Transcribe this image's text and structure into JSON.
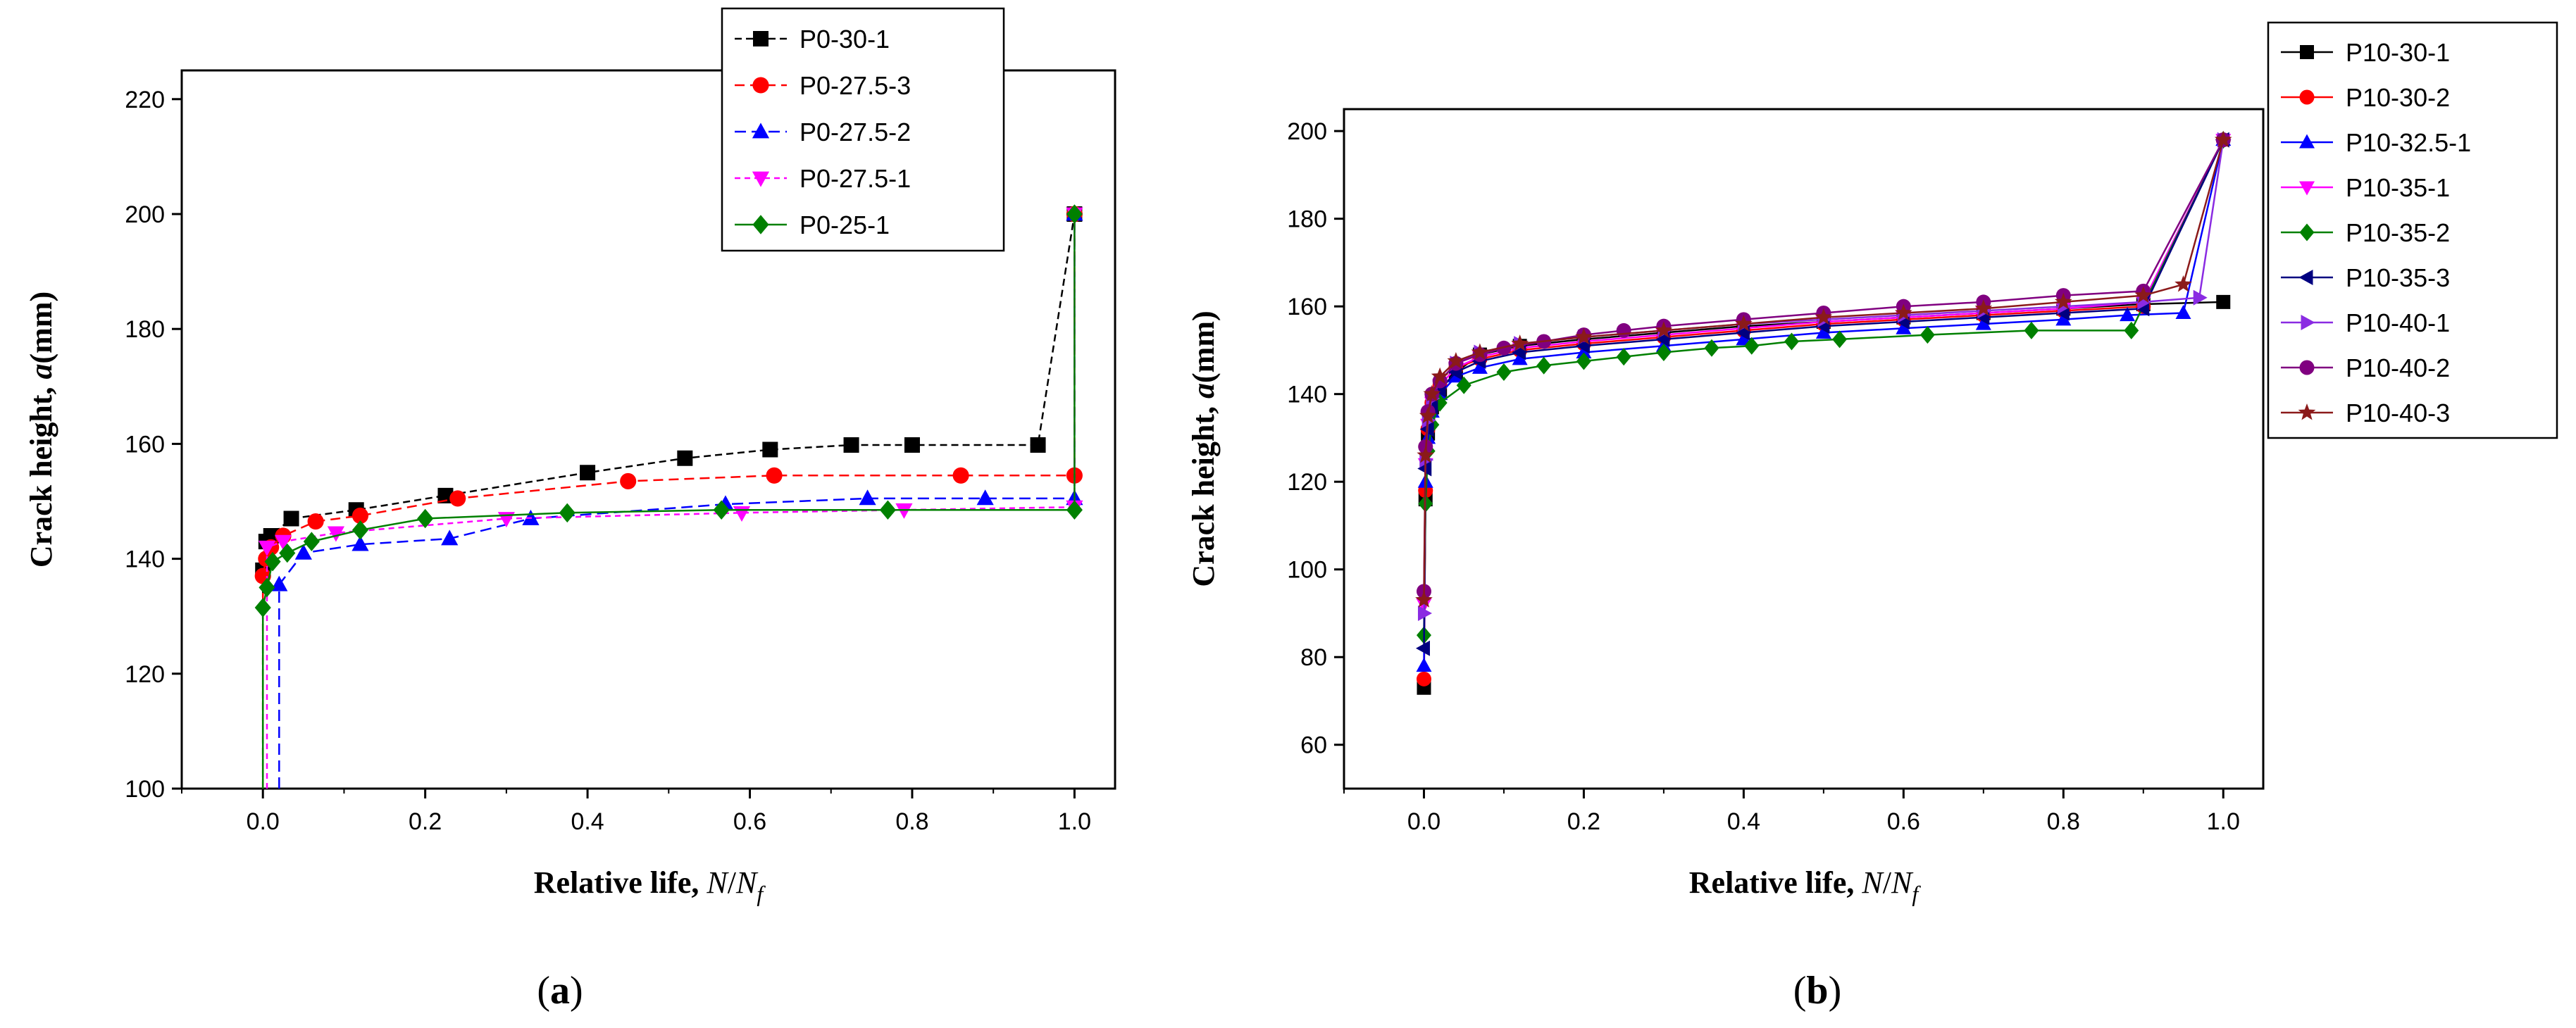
{
  "chart_data": [
    {
      "panel": "a",
      "caption_open": "(",
      "caption_letter": "a",
      "caption_close": ")",
      "type": "line",
      "xlabel": "Relative life, N/N_f",
      "xlabel_main": "Relative life, ",
      "xlabel_N": "N",
      "xlabel_slash": "/",
      "xlabel_N2": "N",
      "xlabel_sub": "f",
      "ylabel_main": "Crack height, ",
      "ylabel_var": "a",
      "ylabel_unit": "(mm)",
      "xlim": [
        -0.1,
        1.05
      ],
      "ylim": [
        100,
        225
      ],
      "xticks": [
        0.0,
        0.2,
        0.4,
        0.6,
        0.8,
        1.0
      ],
      "xtick_labels": [
        "0.0",
        "0.2",
        "0.4",
        "0.6",
        "0.8",
        "1.0"
      ],
      "yticks": [
        100,
        120,
        140,
        160,
        180,
        200,
        220
      ],
      "ytick_labels": [
        "100",
        "120",
        "140",
        "160",
        "180",
        "200",
        "220"
      ],
      "legend_position": "top-right",
      "series": [
        {
          "name": "P0-30-1",
          "color": "#000000",
          "marker": "square",
          "dash": "10,6",
          "x": [
            0,
            0,
            0.004,
            0.01,
            0.035,
            0.115,
            0.225,
            0.4,
            0.52,
            0.625,
            0.725,
            0.8,
            0.955,
            1.0
          ],
          "y": [
            100,
            138,
            143,
            144,
            147,
            148.5,
            151,
            155,
            157.5,
            159,
            159.8,
            159.8,
            159.8,
            200
          ]
        },
        {
          "name": "P0-27.5-3",
          "color": "#ff0000",
          "marker": "circle",
          "dash": "14,8",
          "x": [
            0,
            0,
            0.004,
            0.01,
            0.025,
            0.065,
            0.12,
            0.24,
            0.45,
            0.63,
            0.86,
            1.0,
            1.0
          ],
          "y": [
            100,
            137,
            140,
            142,
            144,
            146.5,
            147.5,
            150.5,
            153.5,
            154.5,
            154.5,
            154.5,
            200
          ]
        },
        {
          "name": "P0-27.5-2",
          "color": "#0000ff",
          "marker": "triangle-up",
          "dash": "16,8",
          "x": [
            0.02,
            0.02,
            0.05,
            0.12,
            0.23,
            0.33,
            0.57,
            0.745,
            0.89,
            1.0,
            1.0
          ],
          "y": [
            100,
            135.5,
            141,
            142.5,
            143.5,
            147,
            149.5,
            150.5,
            150.5,
            150.5,
            200
          ]
        },
        {
          "name": "P0-27.5-1",
          "color": "#ff00ff",
          "marker": "triangle-down",
          "dash": "8,6",
          "x": [
            0.005,
            0.005,
            0.025,
            0.09,
            0.3,
            0.59,
            0.79,
            1.0,
            1.0
          ],
          "y": [
            100,
            142,
            143,
            144.5,
            147,
            148,
            148.5,
            149,
            200
          ]
        },
        {
          "name": "P0-25-1",
          "color": "#008000",
          "marker": "diamond",
          "dash": "",
          "x": [
            0,
            0,
            0.005,
            0.012,
            0.03,
            0.06,
            0.12,
            0.2,
            0.375,
            0.565,
            0.77,
            1.0,
            1.0
          ],
          "y": [
            100,
            131.5,
            135,
            139.5,
            141,
            143,
            145,
            147,
            148,
            148.5,
            148.5,
            148.5,
            200
          ]
        }
      ]
    },
    {
      "panel": "b",
      "caption_open": "(",
      "caption_letter": "b",
      "caption_close": ")",
      "type": "line",
      "xlabel": "Relative life, N/N_f",
      "xlabel_main": "Relative life, ",
      "xlabel_N": "N",
      "xlabel_slash": "/",
      "xlabel_N2": "N",
      "xlabel_sub": "f",
      "ylabel_main": "Crack height, ",
      "ylabel_var": "a",
      "ylabel_unit": "(mm)",
      "xlim": [
        -0.1,
        1.05
      ],
      "ylim": [
        50,
        205
      ],
      "xticks": [
        0.0,
        0.2,
        0.4,
        0.6,
        0.8,
        1.0
      ],
      "xtick_labels": [
        "0.0",
        "0.2",
        "0.4",
        "0.6",
        "0.8",
        "1.0"
      ],
      "yticks": [
        60,
        80,
        100,
        120,
        140,
        160,
        180,
        200
      ],
      "ytick_labels": [
        "60",
        "80",
        "100",
        "120",
        "140",
        "160",
        "180",
        "200"
      ],
      "legend_position": "top-right",
      "series": [
        {
          "name": "P10-30-1",
          "color": "#000000",
          "marker": "square",
          "x": [
            0,
            0.002,
            0.005,
            0.01,
            0.02,
            0.04,
            0.07,
            0.12,
            0.2,
            0.3,
            0.4,
            0.5,
            0.6,
            0.7,
            0.8,
            0.9,
            1.0
          ],
          "y": [
            73,
            116,
            131,
            137,
            141,
            145,
            149,
            151,
            152.5,
            154,
            155.5,
            156.5,
            157.5,
            158.5,
            159.5,
            160.5,
            161
          ]
        },
        {
          "name": "P10-30-2",
          "color": "#ff0000",
          "marker": "circle",
          "x": [
            0,
            0.002,
            0.005,
            0.01,
            0.02,
            0.04,
            0.07,
            0.12,
            0.2,
            0.3,
            0.4,
            0.5,
            0.6,
            0.7,
            0.8,
            0.9,
            1.0
          ],
          "y": [
            75,
            118,
            132,
            138,
            142,
            146,
            148,
            150,
            151.5,
            153,
            154.5,
            156,
            157,
            158,
            159,
            160,
            198
          ]
        },
        {
          "name": "P10-32.5-1",
          "color": "#0000ff",
          "marker": "triangle-up",
          "x": [
            0,
            0.002,
            0.005,
            0.01,
            0.02,
            0.04,
            0.07,
            0.12,
            0.2,
            0.3,
            0.4,
            0.5,
            0.6,
            0.7,
            0.8,
            0.88,
            0.95,
            1.0
          ],
          "y": [
            78,
            120,
            130,
            136,
            140,
            144,
            146,
            148,
            149.5,
            151,
            152.5,
            154,
            155,
            156,
            157,
            158,
            158.5,
            198
          ]
        },
        {
          "name": "P10-35-1",
          "color": "#ff00ff",
          "marker": "triangle-down",
          "x": [
            0,
            0.002,
            0.005,
            0.01,
            0.02,
            0.04,
            0.07,
            0.12,
            0.2,
            0.3,
            0.4,
            0.5,
            0.6,
            0.7,
            0.8,
            0.9,
            1.0
          ],
          "y": [
            92,
            124,
            133,
            138,
            142,
            146,
            148.5,
            150.5,
            152,
            153.5,
            155,
            156.5,
            157.5,
            158.5,
            159.5,
            161,
            198
          ]
        },
        {
          "name": "P10-35-2",
          "color": "#008000",
          "marker": "diamond",
          "x": [
            0,
            0.002,
            0.005,
            0.01,
            0.02,
            0.05,
            0.1,
            0.15,
            0.2,
            0.25,
            0.3,
            0.36,
            0.41,
            0.46,
            0.52,
            0.63,
            0.76,
            0.885,
            1.0
          ],
          "y": [
            85,
            115,
            127,
            133,
            138,
            142,
            145,
            146.5,
            147.5,
            148.5,
            149.5,
            150.5,
            151,
            152,
            152.5,
            153.5,
            154.5,
            154.5,
            198
          ]
        },
        {
          "name": "P10-35-3",
          "color": "#000080",
          "marker": "triangle-left",
          "x": [
            0,
            0.002,
            0.005,
            0.01,
            0.02,
            0.04,
            0.07,
            0.12,
            0.2,
            0.3,
            0.4,
            0.5,
            0.6,
            0.7,
            0.8,
            0.9,
            1.0
          ],
          "y": [
            82,
            123,
            132,
            137,
            141,
            145,
            147.5,
            149.5,
            151,
            152.5,
            154,
            155.5,
            156.5,
            157.5,
            158.5,
            159.5,
            198
          ]
        },
        {
          "name": "P10-40-1",
          "color": "#8a2be2",
          "marker": "triangle-right",
          "x": [
            0,
            0.002,
            0.005,
            0.01,
            0.02,
            0.04,
            0.07,
            0.12,
            0.2,
            0.3,
            0.4,
            0.5,
            0.6,
            0.7,
            0.8,
            0.9,
            0.97,
            1.0
          ],
          "y": [
            90,
            125,
            134,
            139,
            143,
            147,
            149.5,
            151.5,
            153,
            154.5,
            156,
            157,
            158,
            159,
            160,
            161,
            162,
            198
          ]
        },
        {
          "name": "P10-40-2",
          "color": "#800080",
          "marker": "circle",
          "x": [
            0,
            0.002,
            0.005,
            0.01,
            0.02,
            0.04,
            0.07,
            0.1,
            0.15,
            0.2,
            0.25,
            0.3,
            0.4,
            0.5,
            0.6,
            0.7,
            0.8,
            0.9,
            1.0
          ],
          "y": [
            95,
            128,
            136,
            140,
            143,
            147,
            149,
            150.5,
            152,
            153.5,
            154.5,
            155.5,
            157,
            158.5,
            160,
            161,
            162.5,
            163.5,
            198
          ]
        },
        {
          "name": "P10-40-3",
          "color": "#8b1a1a",
          "marker": "star",
          "x": [
            0,
            0.002,
            0.005,
            0.01,
            0.02,
            0.04,
            0.07,
            0.12,
            0.2,
            0.3,
            0.4,
            0.5,
            0.6,
            0.7,
            0.8,
            0.9,
            0.95,
            1.0
          ],
          "y": [
            93,
            126,
            135,
            140,
            144,
            147.5,
            149.5,
            151.5,
            153,
            154.5,
            156,
            157.5,
            158.5,
            159.5,
            161,
            162.5,
            165,
            198
          ]
        }
      ]
    }
  ]
}
